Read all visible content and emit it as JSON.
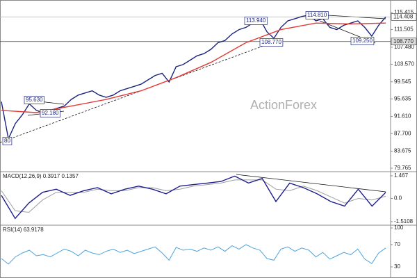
{
  "chart_data": [
    {
      "type": "line",
      "watermark": "ActionForex",
      "ylim": [
        79.29,
        117.48
      ],
      "yticks": [
        115.415,
        111.505,
        {
          "value": 107.48,
          "label": "107.480"
        },
        {
          "value": 103.57,
          "label": "103.570"
        },
        99.545,
        95.635,
        {
          "value": 91.61,
          "label": "91.610"
        },
        {
          "value": 87.7,
          "label": "87.700"
        },
        83.675,
        79.765
      ],
      "price_labels": [
        {
          "value": 114.408,
          "label": "114.408"
        },
        {
          "value": 108.77,
          "label": "108.770"
        }
      ],
      "annotations": [
        "95.630",
        "92.180",
        "80",
        "113.940",
        "114.810",
        "108.770",
        "109.250"
      ],
      "series": [
        {
          "color": "#1a237e",
          "values": [
            95.0,
            86.5,
            90,
            92,
            94.5,
            93,
            92.5,
            93,
            93.5,
            94,
            95.5,
            96.5,
            97,
            97.5,
            96.5,
            96,
            96.5,
            97.5,
            98,
            98.5,
            99,
            100,
            101,
            101.5,
            99.5,
            103,
            103.5,
            104.5,
            105.5,
            106,
            107,
            108.5,
            109,
            110.5,
            111.5,
            112,
            113,
            113.9,
            111,
            109.5,
            112,
            113.5,
            114,
            114.5,
            114.8,
            113.5,
            114,
            112,
            111.5,
            112.5,
            113,
            113.5,
            112,
            110,
            112.5,
            114.4
          ]
        },
        {
          "color": "#e53935",
          "values": [
            93,
            92.5,
            94,
            95.5,
            97.5,
            100.5,
            104,
            108.5,
            111.5,
            113,
            112.8,
            113
          ]
        }
      ]
    },
    {
      "type": "line",
      "title": "MACD(12,26,9) 0.3917 0.1357",
      "ylim": [
        -1.691,
        1.648
      ],
      "yticks": [
        1.467,
        {
          "value": 0,
          "label": "0.0"
        },
        -1.5108
      ],
      "series": [
        {
          "color": "#9e9e9e",
          "values": [
            0.5,
            -0.8,
            -0.9,
            -0.1,
            0.4,
            0.4,
            0.4,
            0.6,
            0.5,
            0.5,
            0.7,
            0.7,
            0.5,
            0.6,
            0.8,
            0.9,
            1.0,
            1.2,
            1.2,
            1.2,
            0.6,
            0.5,
            0.8,
            0.5,
            0.1,
            -0.3,
            0.0,
            -0.1,
            0.14
          ]
        },
        {
          "color": "#1c1c8f",
          "values": [
            0.2,
            -1.3,
            -0.3,
            0.4,
            0.6,
            0.2,
            0.5,
            0.7,
            0.3,
            0.6,
            0.8,
            0.6,
            0.3,
            0.8,
            0.9,
            1.0,
            1.1,
            1.45,
            1.0,
            1.3,
            -0.2,
            1.0,
            0.7,
            0.3,
            -0.2,
            -0.5,
            0.6,
            -0.5,
            0.39
          ]
        }
      ]
    },
    {
      "type": "line",
      "title": "RSI(14) 63.9178",
      "ylim": [
        15,
        102.5
      ],
      "yticks": [
        100,
        70,
        30
      ],
      "series": [
        {
          "color": "#4aa3df",
          "values": [
            45,
            35,
            48,
            55,
            60,
            50,
            52,
            48,
            55,
            62,
            58,
            50,
            60,
            55,
            52,
            58,
            62,
            56,
            60,
            54,
            58,
            62,
            66,
            55,
            42,
            65,
            60,
            62,
            58,
            64,
            60,
            66,
            58,
            68,
            62,
            70,
            64,
            60,
            45,
            42,
            62,
            66,
            58,
            64,
            60,
            48,
            56,
            44,
            50,
            56,
            52,
            62,
            44,
            36,
            55,
            64
          ]
        }
      ]
    }
  ]
}
